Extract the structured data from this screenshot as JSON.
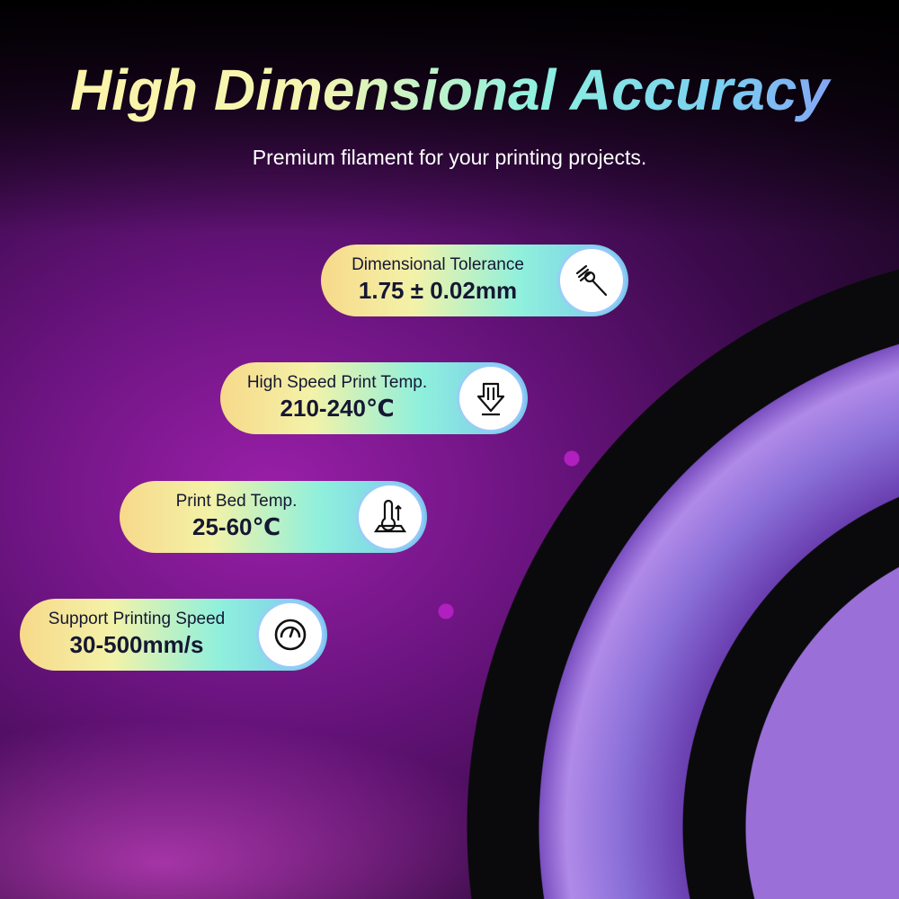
{
  "header": {
    "title": "High Dimensional Accuracy",
    "subtitle": "Premium filament for your printing projects."
  },
  "specs": [
    {
      "label": "Dimensional Tolerance",
      "value": "1.75 ± 0.02mm",
      "icon": "caliper-icon"
    },
    {
      "label": "High Speed Print Temp.",
      "value": "210-240℃",
      "icon": "nozzle-temp-icon"
    },
    {
      "label": "Print Bed Temp.",
      "value": "25-60℃",
      "icon": "bed-thermometer-icon"
    },
    {
      "label": "Support Printing Speed",
      "value": "30-500mm/s",
      "icon": "speedometer-icon"
    }
  ],
  "colors": {
    "filament": "#8a6fd8",
    "spool": "#0a0a0c",
    "accent_magenta": "#b21fc0"
  }
}
